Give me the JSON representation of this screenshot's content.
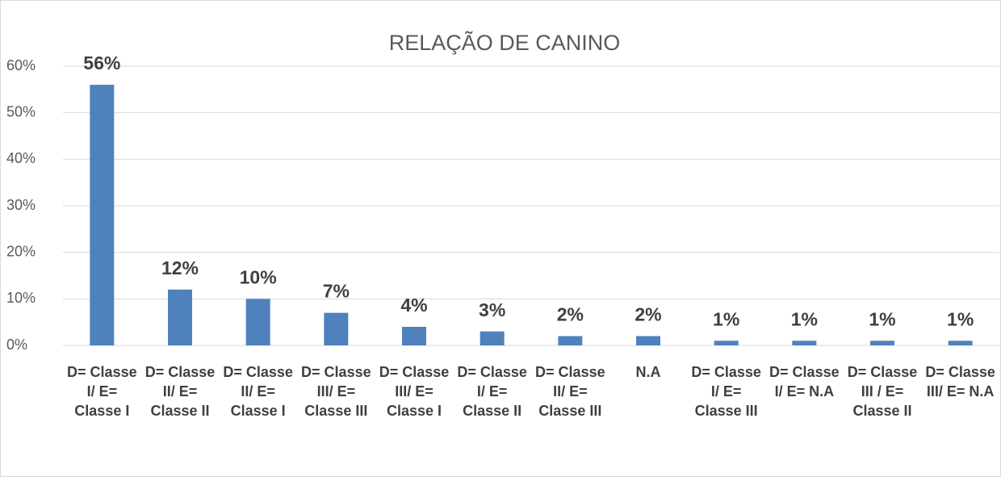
{
  "chart_data": {
    "type": "bar",
    "title": "RELAÇÃO DE CANINO",
    "categories": [
      "D= Classe I/ E= Classe I",
      "D= Classe II/ E= Classe II",
      "D= Classe II/ E= Classe I",
      "D= Classe III/ E= Classe III",
      "D= Classe III/ E= Classe I",
      "D= Classe I/ E= Classe II",
      "D= Classe II/ E= Classe III",
      "N.A",
      "D= Classe I/ E= Classe III",
      "D= Classe I/ E= N.A",
      "D= Classe III / E= Classe II",
      "D= Classe III/ E= N.A"
    ],
    "values": [
      56,
      12,
      10,
      7,
      4,
      3,
      2,
      2,
      1,
      1,
      1,
      1
    ],
    "value_labels": [
      "56%",
      "12%",
      "10%",
      "7%",
      "4%",
      "3%",
      "2%",
      "2%",
      "1%",
      "1%",
      "1%",
      "1%"
    ],
    "color": "#4f81bd",
    "ylim": [
      0,
      60
    ],
    "yticks": [
      {
        "value": 0,
        "label": "0%"
      },
      {
        "value": 10,
        "label": "10%"
      },
      {
        "value": 20,
        "label": "20%"
      },
      {
        "value": 30,
        "label": "30%"
      },
      {
        "value": 40,
        "label": "40%"
      },
      {
        "value": 50,
        "label": "50%"
      },
      {
        "value": 60,
        "label": "60%"
      }
    ],
    "grid": true
  }
}
